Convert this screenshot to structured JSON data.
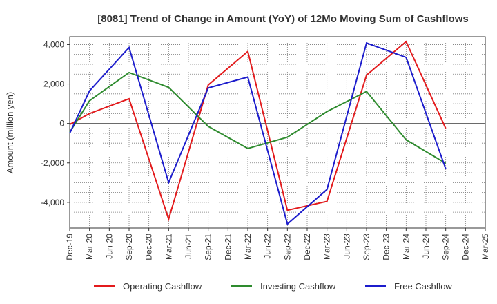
{
  "chart_data": {
    "type": "line",
    "title": "[8081]  Trend of Change in Amount (YoY) of 12Mo Moving Sum of Cashflows",
    "xlabel": "",
    "ylabel": "Amount (million yen)",
    "ylim": [
      -5300,
      4400
    ],
    "yticks": [
      4000,
      2000,
      0,
      -2000,
      -4000
    ],
    "ytick_labels": [
      "4,000",
      "2,000",
      "0",
      "-2,000",
      "-4,000"
    ],
    "categories": [
      "Dec-19",
      "Mar-20",
      "Jun-20",
      "Sep-20",
      "Dec-20",
      "Mar-21",
      "Jun-21",
      "Sep-21",
      "Dec-21",
      "Mar-22",
      "Jun-22",
      "Sep-22",
      "Dec-22",
      "Mar-23",
      "Jun-23",
      "Sep-23",
      "Dec-23",
      "Mar-24",
      "Jun-24",
      "Sep-24",
      "Dec-24",
      "Mar-25"
    ],
    "grid": true,
    "legend_position": "bottom",
    "series": [
      {
        "name": "Operating Cashflow",
        "color": "#e31a1c",
        "values": [
          -50,
          500,
          null,
          1250,
          null,
          -4850,
          null,
          1950,
          null,
          3650,
          null,
          -4400,
          null,
          -3950,
          null,
          2450,
          null,
          4150,
          null,
          -250,
          null,
          null
        ]
      },
      {
        "name": "Investing Cashflow",
        "color": "#2e8b2e",
        "values": [
          -450,
          1150,
          null,
          2580,
          null,
          1830,
          null,
          -150,
          null,
          -1270,
          null,
          -700,
          null,
          600,
          null,
          1620,
          null,
          -830,
          null,
          -2020,
          null,
          null
        ]
      },
      {
        "name": "Free Cashflow",
        "color": "#1c1ccc",
        "values": [
          -500,
          1650,
          null,
          3850,
          null,
          -3000,
          null,
          1800,
          null,
          2350,
          null,
          -5100,
          null,
          -3350,
          null,
          4080,
          null,
          3350,
          null,
          -2300,
          null,
          null
        ]
      }
    ]
  }
}
